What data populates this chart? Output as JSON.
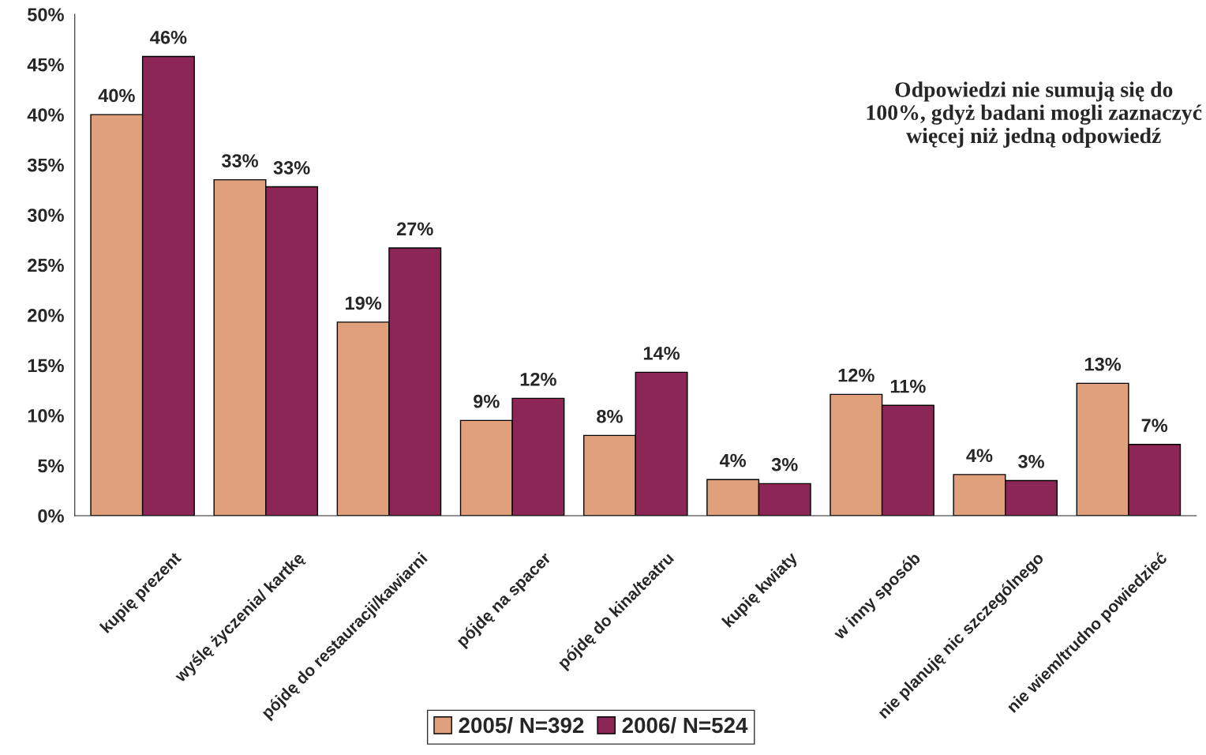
{
  "chart_data": {
    "type": "bar",
    "categories": [
      "kupię prezent",
      "wyślę życzenia/ kartkę",
      "pójdę do restauracji/kawiarni",
      "pójdę na spacer",
      "pójdę do kina/teatru",
      "kupię kwiaty",
      "w inny sposób",
      "nie planuję nic szczególnego",
      "nie wiem/trudno powiedzieć"
    ],
    "series": [
      {
        "name": "2005/ N=392",
        "color": "#e0a07c",
        "values": [
          40,
          33.5,
          19.3,
          9.5,
          8,
          3.6,
          12.1,
          4.1,
          13.2
        ],
        "value_labels": [
          "40%",
          "33%",
          "19%",
          "9%",
          "8%",
          "4%",
          "12%",
          "4%",
          "13%"
        ]
      },
      {
        "name": "2006/ N=524",
        "color": "#8c2656",
        "values": [
          45.8,
          32.8,
          26.7,
          11.7,
          14.3,
          3.2,
          11,
          3.5,
          7.1
        ],
        "value_labels": [
          "46%",
          "33%",
          "27%",
          "12%",
          "14%",
          "3%",
          "11%",
          "3%",
          "7%"
        ]
      }
    ],
    "ylim": [
      0,
      50
    ],
    "yticks": [
      {
        "value": 0,
        "label": "0%"
      },
      {
        "value": 5,
        "label": "5%"
      },
      {
        "value": 10,
        "label": "10%"
      },
      {
        "value": 15,
        "label": "15%"
      },
      {
        "value": 20,
        "label": "20%"
      },
      {
        "value": 25,
        "label": "25%"
      },
      {
        "value": 30,
        "label": "30%"
      },
      {
        "value": 35,
        "label": "35%"
      },
      {
        "value": 40,
        "label": "40%"
      },
      {
        "value": 45,
        "label": "45%"
      },
      {
        "value": 50,
        "label": "50%"
      }
    ],
    "annotations": [
      "Odpowiedzi nie sumują się do 100%, gdyż badani mogli zaznaczyć więcej niż jedną odpowiedź"
    ],
    "legend": "bottom",
    "grid": false
  }
}
